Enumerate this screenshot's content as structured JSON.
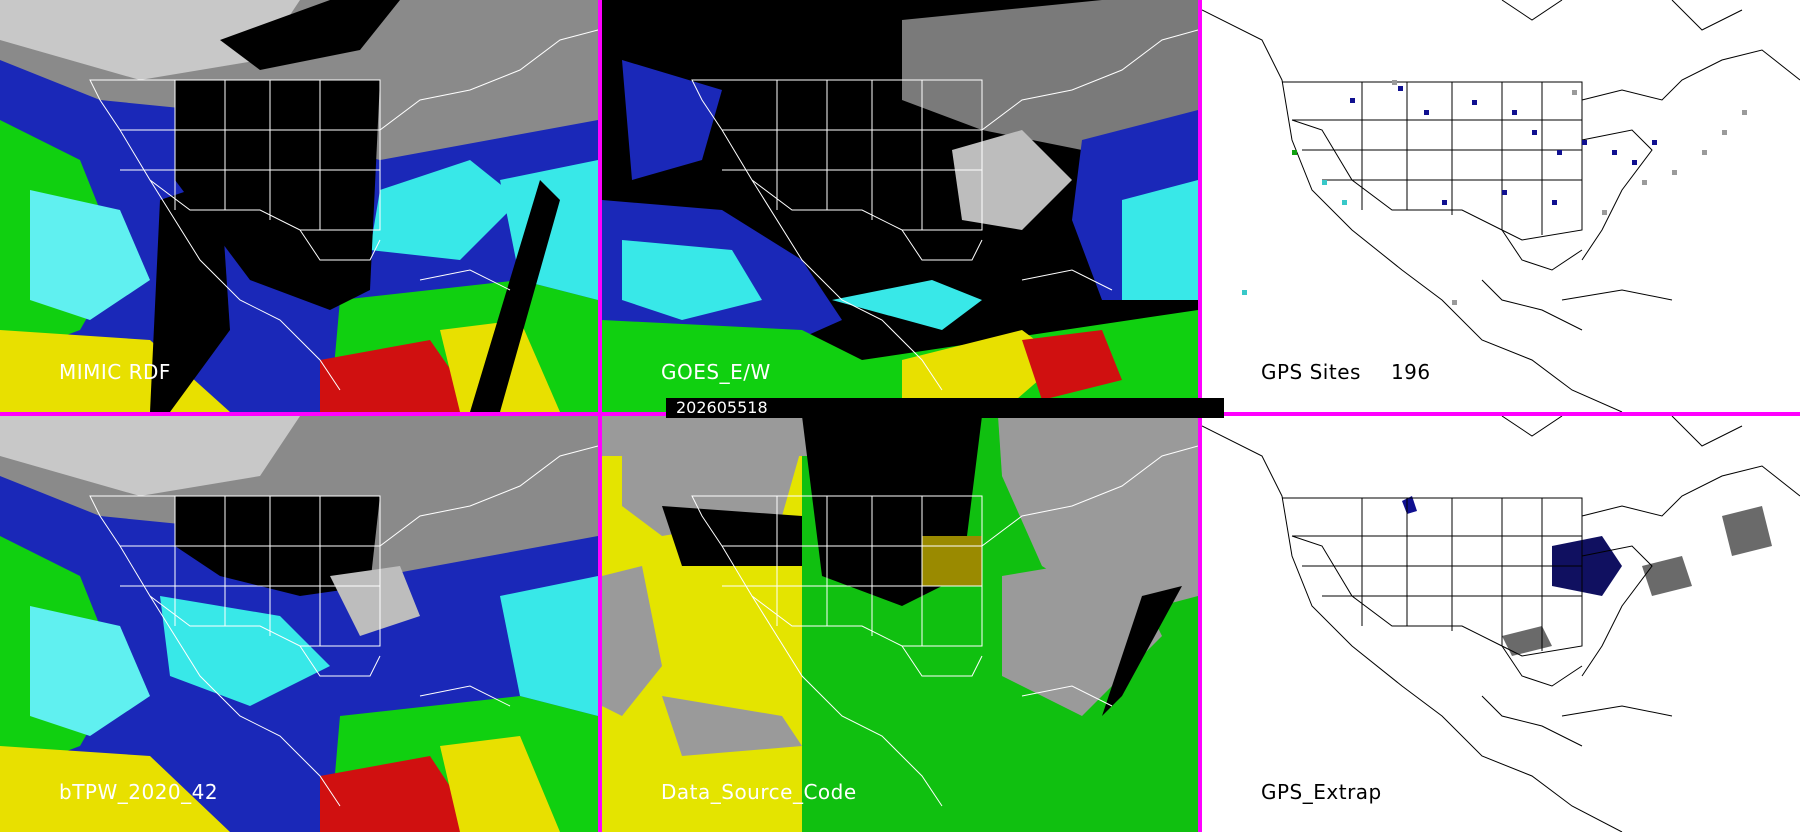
{
  "panels": {
    "mimic_rdf": {
      "label": "MIMIC RDF"
    },
    "goes_ew": {
      "label": "GOES_E/W"
    },
    "gps_sites": {
      "label": "GPS Sites",
      "count": "196"
    },
    "btpw": {
      "label": "bTPW_2020_42"
    },
    "data_source_code": {
      "label": "Data_Source_Code"
    },
    "gps_extrap": {
      "label": "GPS_Extrap"
    }
  },
  "timestamp": "202605518",
  "colors": {
    "divider": "#ff00ff",
    "tpw_low": "#0a1aa8",
    "tpw_mid": "#38e8e8",
    "tpw_high": "#10e010",
    "tpw_very_high": "#e8e000",
    "tpw_extreme": "#d01010",
    "data_source_goes": "#e4e400",
    "data_source_mimic": "#10c010",
    "data_source_gps": "#9a9a9a",
    "outline": "#ffffff"
  }
}
